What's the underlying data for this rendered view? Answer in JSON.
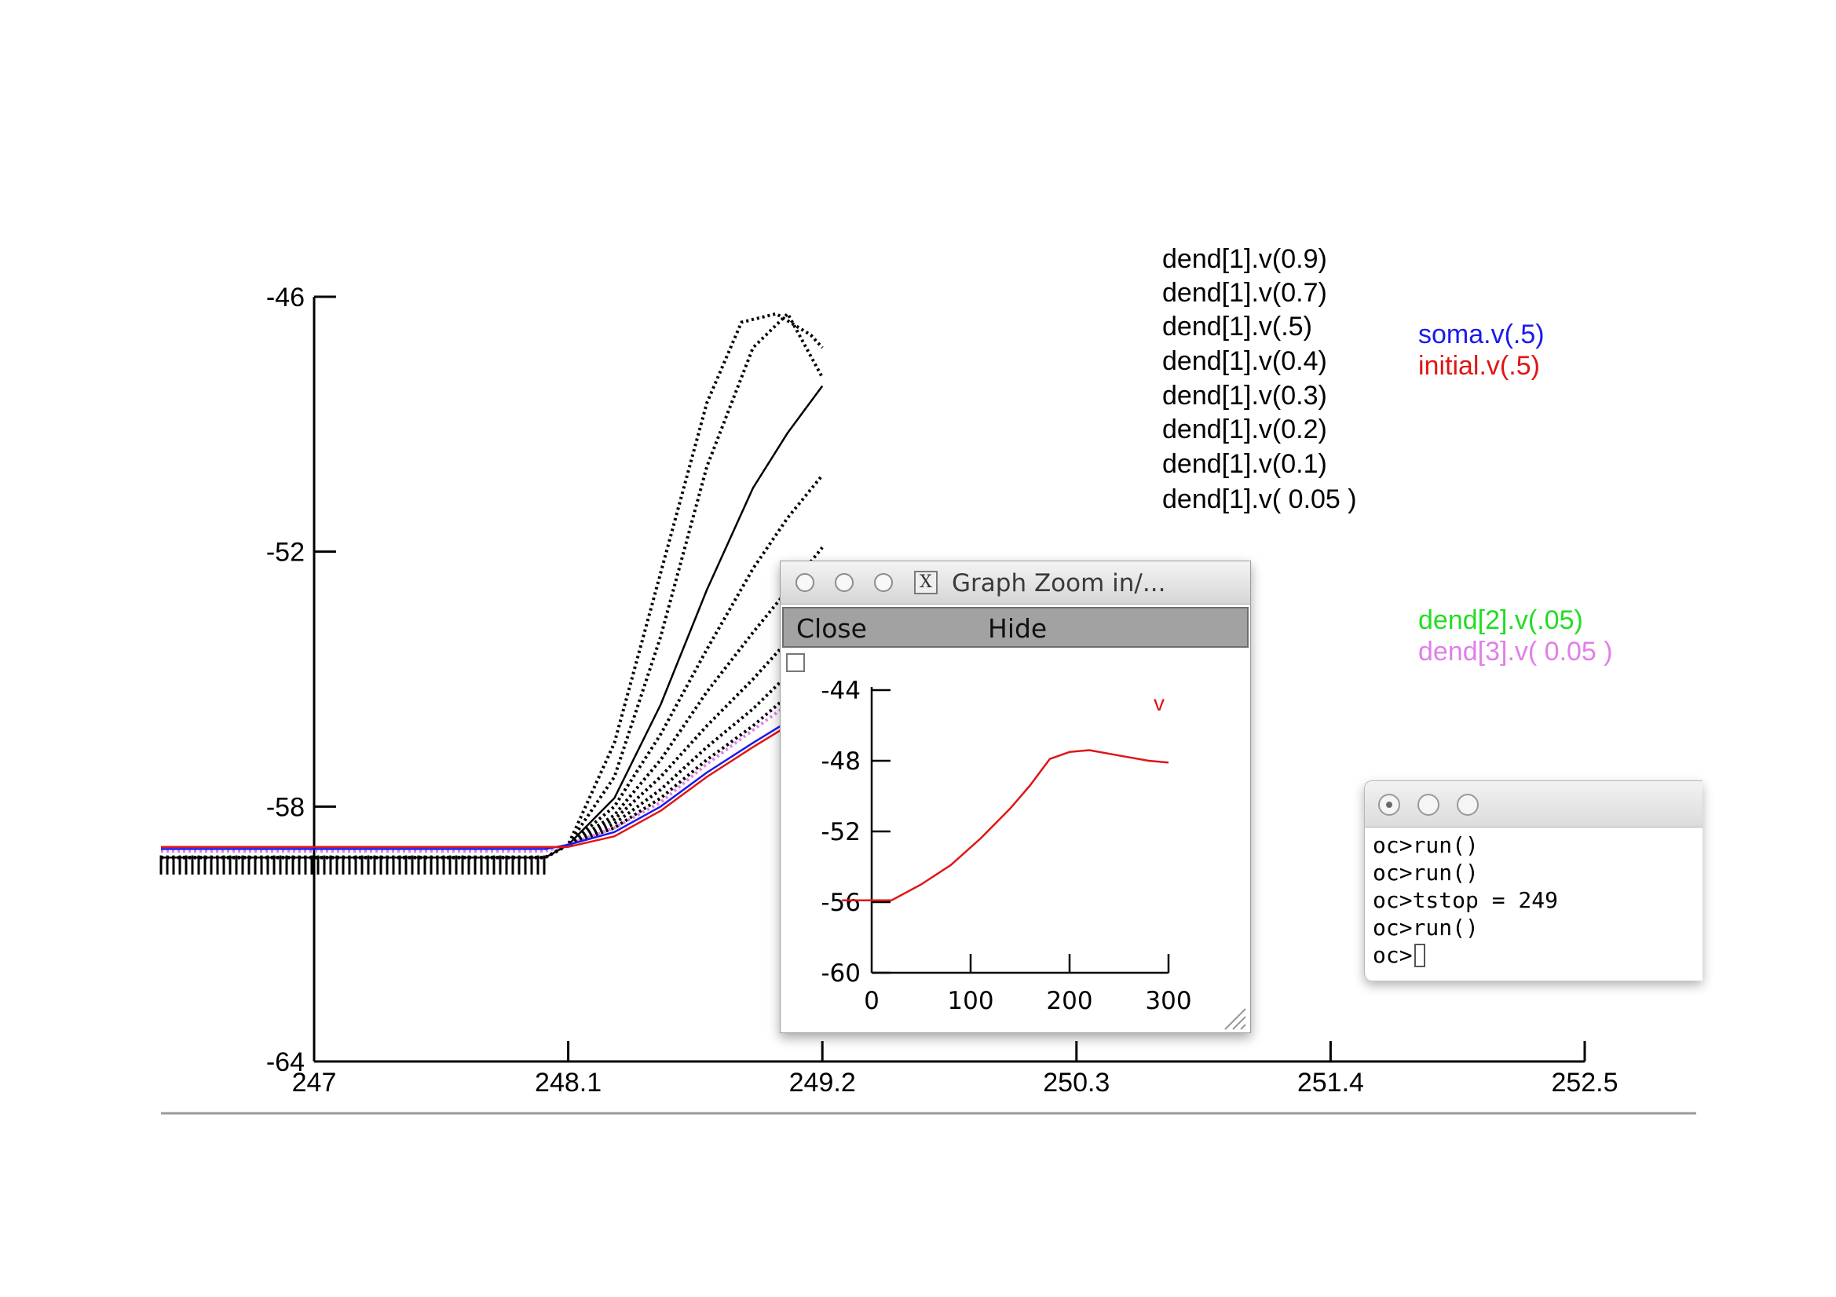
{
  "main_graph": {
    "x_ticks": [
      "247",
      "248.1",
      "249.2",
      "250.3",
      "251.4",
      "252.5"
    ],
    "y_ticks": [
      "-46",
      "-52",
      "-58",
      "-64"
    ],
    "xlim": [
      247,
      252.5
    ],
    "ylim": [
      -64,
      -46
    ]
  },
  "legend": {
    "black_items": [
      "dend[1].v(0.9)",
      "dend[1].v(0.7)",
      "dend[1].v(.5)",
      "dend[1].v(0.4)",
      "dend[1].v(0.3)",
      "dend[1].v(0.2)",
      "dend[1].v(0.1)",
      "dend[1].v( 0.05 )"
    ],
    "soma": "soma.v(.5)",
    "initial": "initial.v(.5)",
    "dend2": "dend[2].v(.05)",
    "dend3": "dend[3].v( 0.05 )",
    "colors": {
      "dend1": "#000000",
      "soma": "#1a1aee",
      "initial": "#e01515",
      "dend2": "#22dd22",
      "dend3": "#e080e8"
    }
  },
  "chart_data": {
    "type": "line",
    "xlim": [
      247,
      252.5
    ],
    "ylim": [
      -64,
      -46
    ],
    "series": [
      {
        "name": "dend[1].v(0.9)",
        "style": "dotted",
        "x": [
          247,
          248.0,
          248.1,
          248.3,
          248.5,
          248.7,
          248.85,
          249.0,
          249.15,
          249.2
        ],
        "y": [
          -59.2,
          -59.2,
          -58.9,
          -56.5,
          -52.5,
          -48.5,
          -46.6,
          -46.4,
          -46.9,
          -47.2
        ]
      },
      {
        "name": "dend[1].v(0.7)",
        "style": "dotted",
        "x": [
          247,
          248.0,
          248.1,
          248.3,
          248.5,
          248.7,
          248.9,
          249.05,
          249.2
        ],
        "y": [
          -59.2,
          -59.2,
          -58.9,
          -57.3,
          -54.0,
          -50.0,
          -47.2,
          -46.4,
          -47.9
        ]
      },
      {
        "name": "dend[1].v(.5)",
        "style": "solid",
        "x": [
          247,
          248.0,
          248.1,
          248.3,
          248.5,
          248.7,
          248.9,
          249.05,
          249.2
        ],
        "y": [
          -59.2,
          -59.2,
          -58.9,
          -57.8,
          -55.6,
          -52.9,
          -50.5,
          -49.2,
          -48.1
        ]
      },
      {
        "name": "dend[1].v(0.4)",
        "style": "dotted",
        "x": [
          247,
          248.0,
          248.1,
          248.3,
          248.5,
          248.7,
          248.9,
          249.05,
          249.2
        ],
        "y": [
          -59.2,
          -59.2,
          -58.9,
          -58.0,
          -56.3,
          -54.3,
          -52.4,
          -51.2,
          -50.2
        ]
      },
      {
        "name": "dend[1].v(0.3)",
        "style": "dotted",
        "x": [
          247,
          248.0,
          248.1,
          248.3,
          248.5,
          248.7,
          248.9,
          249.05,
          249.2
        ],
        "y": [
          -59.2,
          -59.2,
          -58.9,
          -58.2,
          -56.9,
          -55.3,
          -53.9,
          -52.9,
          -51.9
        ]
      },
      {
        "name": "dend[1].v(0.2)",
        "style": "dotted",
        "x": [
          247,
          248.0,
          248.1,
          248.3,
          248.5,
          248.7,
          248.9,
          249.05,
          249.2
        ],
        "y": [
          -59.2,
          -59.2,
          -58.9,
          -58.3,
          -57.3,
          -56.1,
          -55.0,
          -54.1,
          -53.4
        ]
      },
      {
        "name": "dend[1].v(0.1)",
        "style": "dotted",
        "x": [
          247,
          248.0,
          248.1,
          248.3,
          248.5,
          248.7,
          248.9,
          249.05,
          249.2
        ],
        "y": [
          -59.2,
          -59.2,
          -58.9,
          -58.4,
          -57.6,
          -56.6,
          -55.7,
          -54.9,
          -54.4
        ]
      },
      {
        "name": "dend[1].v( 0.05 )",
        "style": "dotted",
        "x": [
          247,
          248.0,
          248.1,
          248.3,
          248.5,
          248.7,
          248.9,
          249.05,
          249.2
        ],
        "y": [
          -59.2,
          -59.2,
          -58.9,
          -58.5,
          -57.8,
          -56.9,
          -56.1,
          -55.4,
          -54.9
        ]
      },
      {
        "name": "dend[3].v( 0.05 )",
        "style": "dotted",
        "x": [
          247,
          248.0,
          248.1,
          248.3,
          248.5,
          248.7,
          248.9,
          249.05,
          249.2
        ],
        "y": [
          -59.05,
          -59.05,
          -58.9,
          -58.5,
          -57.9,
          -57.0,
          -56.2,
          -55.6,
          -55.1
        ]
      },
      {
        "name": "soma.v(.5)",
        "style": "solid",
        "x": [
          247,
          248.0,
          248.1,
          248.3,
          248.5,
          248.7,
          248.9,
          249.05,
          249.2
        ],
        "y": [
          -59.0,
          -59.0,
          -58.9,
          -58.6,
          -58.0,
          -57.2,
          -56.5,
          -56.0,
          -55.6
        ]
      },
      {
        "name": "initial.v(.5)",
        "style": "solid",
        "x": [
          247,
          248.0,
          248.1,
          248.3,
          248.5,
          248.7,
          248.9,
          249.05,
          249.2
        ],
        "y": [
          -58.95,
          -58.95,
          -58.95,
          -58.7,
          -58.1,
          -57.3,
          -56.6,
          -56.1,
          -55.7
        ]
      }
    ]
  },
  "zoom_window": {
    "title": "Graph Zoom in/...",
    "menu": {
      "close": "Close",
      "hide": "Hide"
    },
    "x_ticks": [
      "0",
      "100",
      "200",
      "300"
    ],
    "y_ticks": [
      "-44",
      "-48",
      "-52",
      "-56",
      "-60"
    ],
    "series_label": "v",
    "chart_data": {
      "type": "line",
      "xlim": [
        0,
        300
      ],
      "ylim": [
        -60,
        -44
      ],
      "series": [
        {
          "name": "v",
          "x": [
            -30,
            20,
            50,
            80,
            110,
            140,
            160,
            180,
            200,
            220,
            250,
            280,
            300
          ],
          "y": [
            -55.9,
            -55.9,
            -55.0,
            -53.9,
            -52.4,
            -50.7,
            -49.4,
            -47.9,
            -47.5,
            -47.4,
            -47.7,
            -48.0,
            -48.1
          ]
        }
      ]
    }
  },
  "terminal": {
    "lines": [
      "oc>run()",
      "oc>run()",
      "oc>tstop = 249",
      "oc>run()"
    ],
    "prompt": "oc>"
  }
}
